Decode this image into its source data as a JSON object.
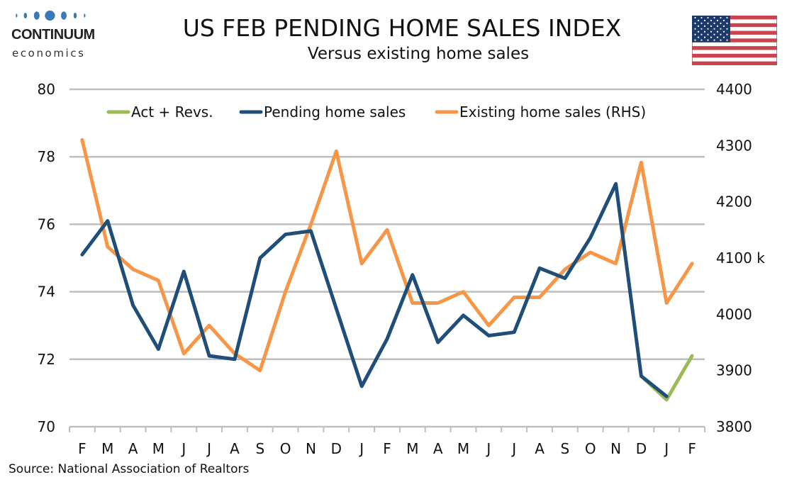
{
  "header": {
    "logo_name": "CONTINUUM",
    "logo_sub": "economics",
    "title": "US FEB PENDING HOME SALES INDEX",
    "subtitle": "Versus existing home sales",
    "flag_icon": "us-flag-icon"
  },
  "footer": {
    "source": "Source: National Association of Realtors"
  },
  "colors": {
    "pending": "#1f4e79",
    "existing": "#f79646",
    "act_revs": "#9bbb59",
    "grid": "#bfbfbf",
    "logo_blue": "#3a7ab8"
  },
  "chart_data": {
    "type": "line",
    "title": "US FEB PENDING HOME SALES INDEX",
    "subtitle": "Versus existing home sales",
    "categories": [
      "F",
      "M",
      "A",
      "M",
      "J",
      "J",
      "A",
      "S",
      "O",
      "N",
      "D",
      "J",
      "F",
      "M",
      "A",
      "M",
      "J",
      "J",
      "A",
      "S",
      "O",
      "N",
      "D",
      "J",
      "F"
    ],
    "left_axis": {
      "ylim": [
        70,
        80
      ],
      "ticks": [
        "70",
        "72",
        "74",
        "76",
        "78",
        "80"
      ]
    },
    "right_axis": {
      "ylim": [
        3800,
        4400
      ],
      "ticks": [
        "3800",
        "3900",
        "4000",
        "4100 k",
        "4200",
        "4300",
        "4400"
      ]
    },
    "legend_position": "top",
    "grid": true,
    "series": [
      {
        "name": "Act + Revs.",
        "axis": "left",
        "values": [
          null,
          null,
          null,
          null,
          null,
          null,
          null,
          null,
          null,
          null,
          null,
          null,
          null,
          null,
          null,
          null,
          null,
          null,
          null,
          null,
          null,
          null,
          71.5,
          70.8,
          72.1
        ]
      },
      {
        "name": "Pending home sales",
        "axis": "left",
        "values": [
          75.1,
          76.1,
          73.6,
          72.3,
          74.6,
          72.1,
          72.0,
          75.0,
          75.7,
          75.8,
          73.5,
          71.2,
          72.6,
          74.5,
          72.5,
          73.3,
          72.7,
          72.8,
          74.7,
          74.4,
          75.6,
          77.2,
          71.5,
          70.9,
          null
        ]
      },
      {
        "name": "Existing home sales (RHS)",
        "axis": "right",
        "values": [
          4310,
          4120,
          4080,
          4060,
          3930,
          3980,
          3930,
          3900,
          4040,
          4160,
          4290,
          4090,
          4150,
          4020,
          4020,
          4040,
          3980,
          4030,
          4030,
          4080,
          4110,
          4090,
          4270,
          4020,
          4090
        ]
      }
    ],
    "source": "Source: National Association of Realtors"
  }
}
